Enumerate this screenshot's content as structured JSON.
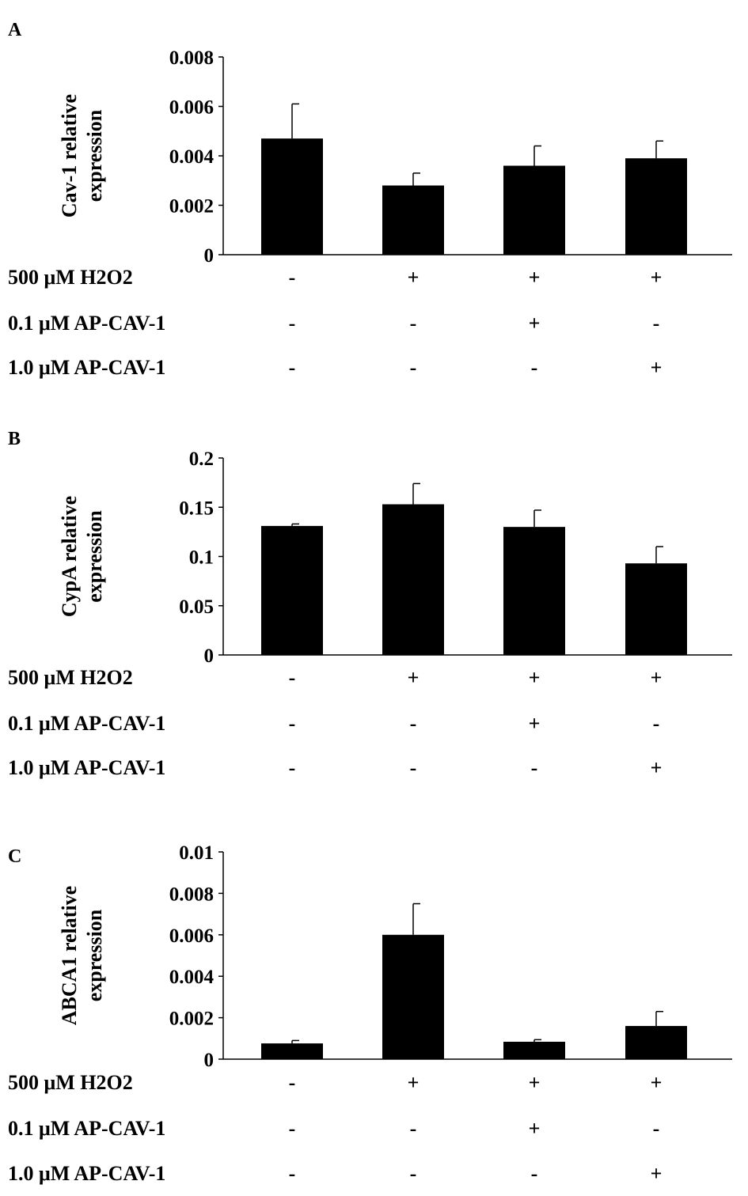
{
  "chart_data": [
    {
      "type": "bar",
      "panel": "A",
      "ylabel": [
        "Cav-1 relative",
        "expression"
      ],
      "ylim": [
        0,
        0.008
      ],
      "yticks": [
        "0",
        "0.002",
        "0.004",
        "0.006",
        "0.008"
      ],
      "values": [
        0.0047,
        0.0028,
        0.0036,
        0.0039
      ],
      "errors": [
        0.0014,
        0.0005,
        0.0008,
        0.0007
      ]
    },
    {
      "type": "bar",
      "panel": "B",
      "ylabel": [
        "CypA relative",
        "expression"
      ],
      "ylim": [
        0,
        0.2
      ],
      "yticks": [
        "0",
        "0.05",
        "0.1",
        "0.15",
        "0.2"
      ],
      "values": [
        0.131,
        0.153,
        0.13,
        0.093
      ],
      "errors": [
        0.002,
        0.021,
        0.017,
        0.017
      ]
    },
    {
      "type": "bar",
      "panel": "C",
      "ylabel": [
        "ABCA1 relative",
        "expression"
      ],
      "ylim": [
        0,
        0.01
      ],
      "yticks": [
        "0",
        "0.002",
        "0.004",
        "0.006",
        "0.008",
        "0.01"
      ],
      "values": [
        0.00076,
        0.006,
        0.00084,
        0.0016
      ],
      "errors": [
        0.00014,
        0.0015,
        0.0001,
        0.0007
      ]
    }
  ],
  "conditions": [
    {
      "label": "500 μM H2O2",
      "marks": [
        "-",
        "+",
        "+",
        "+"
      ]
    },
    {
      "label": "0.1 μM AP-CAV-1",
      "marks": [
        "-",
        "-",
        "+",
        "-"
      ]
    },
    {
      "label": "1.0 μM AP-CAV-1",
      "marks": [
        "-",
        "-",
        "-",
        "+"
      ]
    }
  ],
  "colors": {
    "bar": "#000000",
    "axis": "#000000"
  }
}
